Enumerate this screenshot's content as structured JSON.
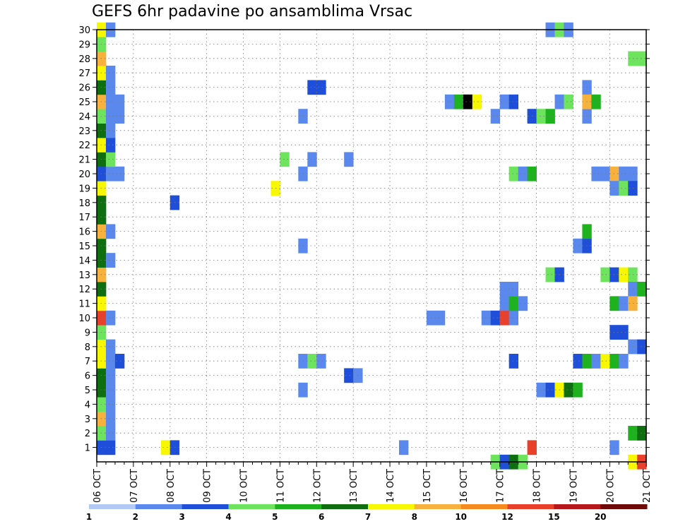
{
  "chart_data": {
    "type": "heatmap",
    "title": "GEFS 6hr padavine po ansamblima Vrsac",
    "xlabel": "",
    "ylabel": "",
    "x_ticks": [
      "06 OCT",
      "07 OCT",
      "08 OCT",
      "09 OCT",
      "10 OCT",
      "11 OCT",
      "12 OCT",
      "13 OCT",
      "14 OCT",
      "15 OCT",
      "16 OCT",
      "17 OCT",
      "18 OCT",
      "19 OCT",
      "20 OCT",
      "21 OCT"
    ],
    "y_ticks": [
      "1",
      "2",
      "3",
      "4",
      "5",
      "6",
      "7",
      "8",
      "9",
      "10",
      "11",
      "12",
      "13",
      "14",
      "15",
      "16",
      "17",
      "18",
      "19",
      "20",
      "21",
      "22",
      "23",
      "24",
      "25",
      "26",
      "27",
      "28",
      "29",
      "30"
    ],
    "grid": true,
    "legend": {
      "position": "bottom",
      "labels": [
        "1",
        "2",
        "3",
        "4",
        "5",
        "6",
        "7",
        "8",
        "10",
        "12",
        "15",
        "20"
      ],
      "colors": [
        "#b3c9f5",
        "#5b88ec",
        "#1f4fd8",
        "#6ee35e",
        "#1eb31e",
        "#0f6e0f",
        "#f7f700",
        "#f7b13d",
        "#f58a1e",
        "#e8402a",
        "#b5171a",
        "#6e0a0a"
      ]
    },
    "cells": [
      [
        0,
        1,
        2
      ],
      [
        0,
        2,
        3
      ],
      [
        0,
        3,
        7
      ],
      [
        0,
        4,
        3
      ],
      [
        0,
        5,
        5
      ],
      [
        0,
        6,
        5
      ],
      [
        0,
        7,
        6
      ],
      [
        0,
        8,
        6
      ],
      [
        0,
        9,
        3
      ],
      [
        0,
        10,
        9
      ],
      [
        0,
        11,
        6
      ],
      [
        0,
        12,
        5
      ],
      [
        0,
        13,
        7
      ],
      [
        0,
        14,
        5
      ],
      [
        0,
        15,
        5
      ],
      [
        0,
        16,
        7
      ],
      [
        0,
        17,
        5
      ],
      [
        0,
        18,
        5
      ],
      [
        0,
        19,
        6
      ],
      [
        0,
        20,
        2
      ],
      [
        0,
        21,
        5
      ],
      [
        0,
        22,
        6
      ],
      [
        0,
        23,
        5
      ],
      [
        0,
        24,
        3
      ],
      [
        0,
        25,
        7
      ],
      [
        0,
        26,
        5
      ],
      [
        0,
        27,
        6
      ],
      [
        0,
        28,
        7
      ],
      [
        0,
        29,
        3
      ],
      [
        0,
        30,
        6
      ],
      [
        1,
        1,
        2
      ],
      [
        1,
        2,
        1
      ],
      [
        1,
        3,
        1
      ],
      [
        1,
        4,
        1
      ],
      [
        1,
        5,
        1
      ],
      [
        1,
        6,
        1
      ],
      [
        1,
        7,
        1
      ],
      [
        1,
        8,
        1
      ],
      [
        1,
        10,
        1
      ],
      [
        1,
        14,
        1
      ],
      [
        1,
        16,
        1
      ],
      [
        1,
        20,
        1
      ],
      [
        1,
        21,
        3
      ],
      [
        1,
        22,
        2
      ],
      [
        1,
        23,
        1
      ],
      [
        1,
        24,
        1
      ],
      [
        1,
        25,
        1
      ],
      [
        1,
        26,
        1
      ],
      [
        1,
        27,
        1
      ],
      [
        1,
        30,
        1
      ],
      [
        2,
        7,
        2
      ],
      [
        2,
        20,
        1
      ],
      [
        2,
        24,
        1
      ],
      [
        2,
        25,
        1
      ],
      [
        7,
        1,
        6
      ],
      [
        8,
        1,
        2
      ],
      [
        8,
        18,
        2
      ],
      [
        19,
        19,
        6
      ],
      [
        20,
        21,
        3
      ],
      [
        22,
        7,
        1
      ],
      [
        23,
        7,
        3
      ],
      [
        24,
        7,
        1
      ],
      [
        22,
        5,
        1
      ],
      [
        22,
        15,
        1
      ],
      [
        22,
        20,
        1
      ],
      [
        22,
        24,
        1
      ],
      [
        23,
        26,
        2
      ],
      [
        24,
        26,
        2
      ],
      [
        23,
        21,
        1
      ],
      [
        27,
        6,
        2
      ],
      [
        28,
        6,
        1
      ],
      [
        27,
        21,
        1
      ],
      [
        33,
        1,
        1
      ],
      [
        36,
        10,
        1
      ],
      [
        37,
        10,
        1
      ],
      [
        38,
        25,
        1
      ],
      [
        39,
        25,
        4
      ],
      [
        40,
        25,
        13
      ],
      [
        41,
        25,
        6
      ],
      [
        42,
        10,
        1
      ],
      [
        43,
        10,
        2
      ],
      [
        43,
        0,
        3
      ],
      [
        44,
        10,
        9
      ],
      [
        45,
        10,
        1
      ],
      [
        44,
        11,
        1
      ],
      [
        45,
        11,
        4
      ],
      [
        46,
        11,
        1
      ],
      [
        44,
        12,
        1
      ],
      [
        45,
        12,
        1
      ],
      [
        44,
        25,
        1
      ],
      [
        45,
        25,
        2
      ],
      [
        43,
        24,
        1
      ],
      [
        45,
        7,
        2
      ],
      [
        45,
        20,
        3
      ],
      [
        46,
        20,
        1
      ],
      [
        47,
        20,
        4
      ],
      [
        44,
        0,
        2
      ],
      [
        45,
        0,
        5
      ],
      [
        46,
        0,
        3
      ],
      [
        47,
        1,
        9
      ],
      [
        47,
        24,
        2
      ],
      [
        48,
        24,
        3
      ],
      [
        49,
        24,
        4
      ],
      [
        48,
        5,
        1
      ],
      [
        49,
        5,
        2
      ],
      [
        50,
        5,
        6
      ],
      [
        51,
        5,
        5
      ],
      [
        52,
        5,
        4
      ],
      [
        49,
        13,
        3
      ],
      [
        50,
        13,
        2
      ],
      [
        50,
        25,
        1
      ],
      [
        51,
        25,
        3
      ],
      [
        49,
        30,
        1
      ],
      [
        50,
        30,
        3
      ],
      [
        51,
        30,
        1
      ],
      [
        52,
        7,
        2
      ],
      [
        53,
        7,
        4
      ],
      [
        54,
        7,
        1
      ],
      [
        55,
        7,
        6
      ],
      [
        56,
        7,
        4
      ],
      [
        57,
        7,
        1
      ],
      [
        52,
        15,
        1
      ],
      [
        53,
        15,
        2
      ],
      [
        53,
        16,
        4
      ],
      [
        53,
        24,
        1
      ],
      [
        53,
        26,
        1
      ],
      [
        53,
        25,
        7
      ],
      [
        54,
        25,
        4
      ],
      [
        54,
        20,
        1
      ],
      [
        55,
        20,
        1
      ],
      [
        56,
        20,
        7
      ],
      [
        57,
        20,
        1
      ],
      [
        58,
        20,
        1
      ],
      [
        56,
        19,
        1
      ],
      [
        57,
        19,
        3
      ],
      [
        58,
        19,
        2
      ],
      [
        55,
        13,
        3
      ],
      [
        56,
        13,
        2
      ],
      [
        57,
        13,
        6
      ],
      [
        58,
        13,
        3
      ],
      [
        56,
        11,
        4
      ],
      [
        57,
        11,
        1
      ],
      [
        56,
        9,
        2
      ],
      [
        57,
        9,
        2
      ],
      [
        56,
        1,
        1
      ],
      [
        58,
        12,
        1
      ],
      [
        59,
        12,
        4
      ],
      [
        58,
        11,
        7
      ],
      [
        58,
        8,
        1
      ],
      [
        59,
        8,
        2
      ],
      [
        58,
        2,
        4
      ],
      [
        59,
        2,
        5
      ],
      [
        58,
        0,
        6
      ],
      [
        59,
        0,
        9
      ],
      [
        58,
        28,
        3
      ],
      [
        59,
        28,
        3
      ]
    ]
  }
}
